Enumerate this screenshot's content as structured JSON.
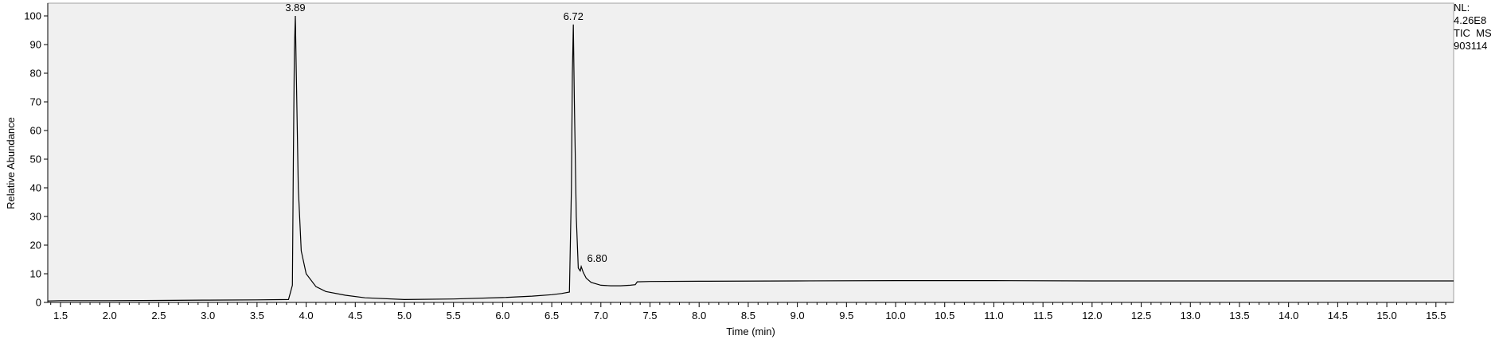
{
  "chart_data": {
    "type": "line",
    "title": "",
    "xlabel": "Time (min)",
    "ylabel": "Relative Abundance",
    "xlim": [
      1.37,
      15.68
    ],
    "ylim": [
      0,
      100
    ],
    "x_ticks": [
      "1.5",
      "2.0",
      "2.5",
      "3.0",
      "3.5",
      "4.0",
      "4.5",
      "5.0",
      "5.5",
      "6.0",
      "6.5",
      "7.0",
      "7.5",
      "8.0",
      "8.5",
      "9.0",
      "9.5",
      "10.0",
      "10.5",
      "11.0",
      "11.5",
      "12.0",
      "12.5",
      "13.0",
      "13.5",
      "14.0",
      "14.5",
      "15.0",
      "15.5"
    ],
    "y_ticks": [
      "0",
      "10",
      "20",
      "30",
      "40",
      "50",
      "60",
      "70",
      "80",
      "90",
      "100"
    ],
    "grid": false,
    "series": [
      {
        "x": [
          1.37,
          1.5,
          2.0,
          2.5,
          3.0,
          3.5,
          3.82,
          3.86,
          3.87,
          3.88,
          3.89,
          3.9,
          3.92,
          3.95,
          4.0,
          4.1,
          4.2,
          4.4,
          4.6,
          5.0,
          5.5,
          6.0,
          6.3,
          6.5,
          6.6,
          6.68,
          6.7,
          6.71,
          6.72,
          6.73,
          6.75,
          6.77,
          6.78,
          6.79,
          6.8,
          6.82,
          6.85,
          6.9,
          7.0,
          7.1,
          7.2,
          7.3,
          7.35,
          7.37,
          7.5,
          8.0,
          9.0,
          10.0,
          11.0,
          12.0,
          13.0,
          14.0,
          15.0,
          15.68
        ],
        "y": [
          0.5,
          0.6,
          0.6,
          0.7,
          0.8,
          0.9,
          1.0,
          6.0,
          50.0,
          88.0,
          100.0,
          80.0,
          40.0,
          18.0,
          10.0,
          5.5,
          3.8,
          2.5,
          1.6,
          1.0,
          1.2,
          1.7,
          2.2,
          2.7,
          3.1,
          3.6,
          40.0,
          80.0,
          97.0,
          70.0,
          30.0,
          12.0,
          11.5,
          11.0,
          12.5,
          10.5,
          8.5,
          7.0,
          6.0,
          5.8,
          5.8,
          6.0,
          6.2,
          7.2,
          7.3,
          7.4,
          7.5,
          7.6,
          7.6,
          7.5,
          7.5,
          7.5,
          7.5,
          7.5
        ]
      }
    ],
    "peak_labels": [
      {
        "text": "3.89",
        "x": 3.89,
        "y": 100.0
      },
      {
        "text": "6.72",
        "x": 6.72,
        "y": 97.0
      },
      {
        "text": "6.80",
        "x": 6.8,
        "y": 12.5
      }
    ]
  },
  "info_box": {
    "line1": "NL:",
    "line2": "4.26E8",
    "line3": "TIC  MS",
    "line4": "903114"
  },
  "colors": {
    "plot_background": "#f0f0f0",
    "trace": "#000000",
    "axis": "#000000"
  }
}
